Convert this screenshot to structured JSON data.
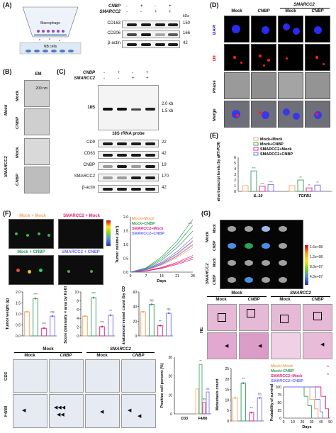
{
  "panel_labels": {
    "a": "(A)",
    "b": "(B)",
    "c": "(C)",
    "d": "(D)",
    "e": "(E)",
    "f": "(F)",
    "g": "(G)"
  },
  "panel_a": {
    "schematic_macrophage": "Macrophage",
    "schematic_nb": "NB cells",
    "row_cnbp": "CNBP",
    "row_smarcc2": "SMARCC2",
    "signs_cnbp": [
      "-",
      "+",
      "-",
      "+"
    ],
    "signs_smarcc2": [
      "-",
      "-",
      "+",
      "+"
    ],
    "kda_unit": "kDa",
    "blots": [
      {
        "name": "CD163",
        "kda": "150"
      },
      {
        "name": "CD206",
        "kda": "166"
      },
      {
        "name": "β-actin",
        "kda": "42"
      }
    ]
  },
  "panel_b": {
    "title": "EM",
    "scale": "200 nm",
    "group_mock": "Mock",
    "group_smarcc2": "SMARCC2",
    "row_labels": [
      "Mock",
      "CNBP",
      "Mock",
      "CNBP"
    ]
  },
  "panel_c": {
    "row_cnbp": "CNBP",
    "row_smarcc2": "SMARCC2",
    "signs_cnbp": [
      "-",
      "+",
      "-",
      "+"
    ],
    "signs_smarcc2": [
      "-",
      "-",
      "+",
      "+"
    ],
    "northern_label": "18S",
    "size_top": "2.0 kb",
    "size_bottom": "1.5 kb",
    "probe": "18S rRNA probe",
    "blots": [
      {
        "name": "CD9",
        "kda": "22"
      },
      {
        "name": "CD63",
        "kda": "42"
      },
      {
        "name": "CNBP",
        "kda": "19"
      },
      {
        "name": "SMARCC2",
        "kda": "170"
      },
      {
        "name": "β-actin",
        "kda": "42"
      }
    ]
  },
  "panel_d": {
    "group_smarcc2": "SMARCC2",
    "cols": [
      "Mock",
      "CNBP",
      "Mock",
      "CNBP"
    ],
    "rows": [
      "DAPI",
      "DiI",
      "Phase",
      "Merge"
    ],
    "row_colors": [
      "#1010c8",
      "#d00000",
      "#000000",
      "#000000"
    ]
  },
  "panel_e": {
    "legend": [
      "Mock+Mock",
      "Mock+CNBP",
      "SMARCC2+Mock",
      "SMARCC2+CNBP"
    ],
    "colors": [
      "#f4a460",
      "#2e9e5a",
      "#e0207c",
      "#6c6cf0"
    ],
    "ylabel": "Relative transcript levels (by qRT-PCR)",
    "categories": [
      "IL-10",
      "TGFB1"
    ],
    "values": [
      [
        1.0,
        3.6,
        0.9,
        1.2
      ],
      [
        1.0,
        2.0,
        0.6,
        1.1
      ]
    ],
    "yticks": [
      "0",
      "1",
      "2",
      "3",
      "4",
      "5",
      "6"
    ],
    "ylim": [
      0,
      6
    ],
    "sig": [
      [
        "",
        "***",
        "***",
        "***"
      ],
      [
        "",
        "**",
        "**",
        "**"
      ]
    ]
  },
  "panel_f": {
    "lum_labels": [
      {
        "text": "Mock + Mock",
        "color": "#f4a460"
      },
      {
        "text": "SMARCC2 + Mock",
        "color": "#e0207c"
      },
      {
        "text": "Mock + CNBP",
        "color": "#2e9e5a"
      },
      {
        "text": "SMARCC2 + CNBP",
        "color": "#6c6cf0"
      }
    ],
    "volume": {
      "ylabel": "Tumor volume (cm³)",
      "xlabel": "Days",
      "xticks": [
        "0",
        "7",
        "14",
        "21",
        "28"
      ],
      "yticks": [
        "0.0",
        "0.5",
        "1.0",
        "1.5",
        "2.0"
      ],
      "legend": [
        "Mock+Mock",
        "Mock+CNBP",
        "SMARCC2+Mock",
        "SMARCC2+CNBP"
      ],
      "sig": "***"
    },
    "bars": [
      {
        "ylabel": "Tumor weight (g)",
        "yticks": [
          "0.0",
          "0.5",
          "1.0",
          "1.5",
          "2.0"
        ],
        "ylim": [
          0,
          2
        ],
        "values": [
          1.1,
          1.7,
          0.35,
          0.9
        ],
        "sig": [
          "",
          "***",
          "***",
          "ns"
        ]
      },
      {
        "ylabel": "Score (intensity × area by Ki-67)",
        "yticks": [
          "0",
          "2",
          "4",
          "6",
          "8",
          "10"
        ],
        "ylim": [
          0,
          10
        ],
        "values": [
          4.5,
          8.7,
          2.1,
          4.7
        ],
        "sig": [
          "",
          "***",
          "***",
          "**"
        ]
      },
      {
        "ylabel": "Intratumoral vessel count (by CD31)",
        "yticks": [
          "0",
          "20",
          "40",
          "60"
        ],
        "ylim": [
          0,
          60
        ],
        "values": [
          33,
          43,
          14,
          31
        ],
        "sig": [
          "",
          "ns",
          "**",
          "ns"
        ]
      }
    ],
    "ihc_header": {
      "mock": "Mock",
      "smarcc2": "SMARCC2",
      "cols": [
        "Mock",
        "CNBP",
        "Mock",
        "CNBP"
      ],
      "rows": [
        "CD3",
        "F4/80"
      ]
    },
    "pos_chart": {
      "ylabel": "Positive cell percent (%)",
      "categories": [
        "CD3",
        "F4/80"
      ],
      "yticks": [
        "0",
        "10",
        "20",
        "30"
      ],
      "ylim": [
        0,
        30
      ],
      "values": [
        [
          0,
          0,
          0,
          0
        ],
        [
          13.2,
          26.2,
          6.1,
          11.6
        ]
      ],
      "sig": [
        "",
        "**",
        "ns",
        "ns"
      ]
    }
  },
  "panel_g": {
    "rows_left_top": "Mock",
    "rows_left_bottom": "SMARCC2",
    "row_sub": [
      "Mock",
      "CNBP",
      "Mock",
      "CNBP"
    ],
    "colorbar": [
      "1.6e+08",
      "1.2e+08",
      "8.0e+07",
      "4.0e+07"
    ],
    "he_header": {
      "mock": "Mock",
      "smarcc2": "SMARCC2",
      "cols": [
        "Mock",
        "CNBP",
        "Mock",
        "CNBP"
      ],
      "row": "HE"
    },
    "met_chart": {
      "ylabel": "Metastasis count",
      "yticks": [
        "0",
        "5",
        "10",
        "15",
        "20",
        "25"
      ],
      "ylim": [
        0,
        25
      ],
      "values": [
        11,
        18,
        4,
        11
      ],
      "sig": [
        "",
        "**",
        "**",
        "ns"
      ]
    },
    "survival": {
      "ylabel": "Probability of survival",
      "xlabel": "Days",
      "xticks": [
        "0",
        "10",
        "20",
        "30",
        "40",
        "50"
      ],
      "yticks": [
        "0",
        "25",
        "50",
        "75",
        "100"
      ],
      "legend": [
        "Mock+Mock",
        "Mock+CNBP",
        "SMARCC2+Mock",
        "SMARCC2+CNBP"
      ],
      "sig": [
        "*",
        "*"
      ]
    }
  }
}
